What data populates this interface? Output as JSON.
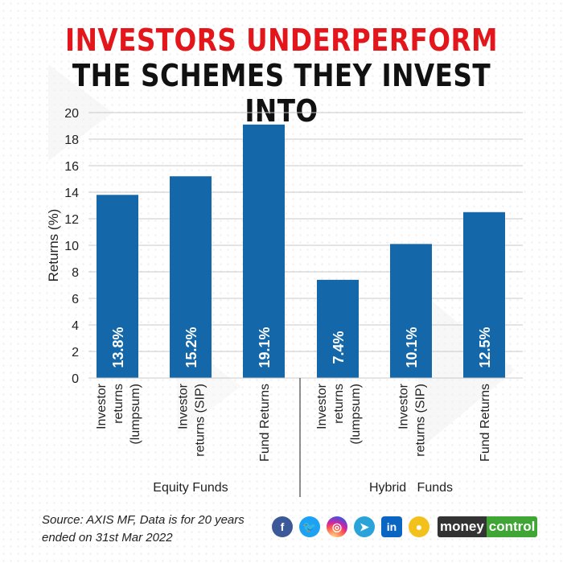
{
  "title": {
    "line1": "INVESTORS UNDERPERFORM",
    "line2": "THE SCHEMES THEY INVEST INTO",
    "line1_color": "#e3171b",
    "line2_color": "#111111"
  },
  "chart_data": {
    "type": "bar",
    "ylabel": "Returns (%)",
    "ylim": [
      0,
      20
    ],
    "yticks": [
      0,
      2,
      4,
      6,
      8,
      10,
      12,
      14,
      16,
      18,
      20
    ],
    "grid": true,
    "bar_color": "#1468aa",
    "categories": [
      "Investor returns (lumpsum)",
      "Investor returns (SIP)",
      "Fund Returns",
      "Investor returns (lumpsum)",
      "Investor returns (SIP)",
      "Fund Returns"
    ],
    "category_lines": [
      [
        "Investor",
        "returns",
        "(lumpsum)"
      ],
      [
        "Investor",
        "returns (SIP)"
      ],
      [
        "Fund Returns"
      ],
      [
        "Investor",
        "returns",
        "(lumpsum)"
      ],
      [
        "Investor",
        "returns (SIP)"
      ],
      [
        "Fund Returns"
      ]
    ],
    "values": [
      13.8,
      15.2,
      19.1,
      7.4,
      10.1,
      12.5
    ],
    "data_labels": [
      "13.8%",
      "15.2%",
      "19.1%",
      "7.4%",
      "10.1%",
      "12.5%"
    ],
    "groups": [
      {
        "name": "Equity Funds",
        "start": 0,
        "end": 2
      },
      {
        "name": "Hybrid   Funds",
        "start": 3,
        "end": 5
      }
    ]
  },
  "footer": {
    "source": "Source: AXIS MF, Data is for 20 years ended on 31st Mar 2022",
    "social_icons": [
      {
        "name": "facebook-icon",
        "glyph": "f",
        "color": "#3b5998"
      },
      {
        "name": "twitter-icon",
        "glyph": "🐦",
        "color": "#1da1f2"
      },
      {
        "name": "instagram-icon",
        "glyph": "◎",
        "color": "#d6249f"
      },
      {
        "name": "telegram-icon",
        "glyph": "➤",
        "color": "#2aa3d9"
      },
      {
        "name": "linkedin-icon",
        "glyph": "in",
        "color": "#0a66c2"
      },
      {
        "name": "koo-icon",
        "glyph": "●",
        "color": "#f3c11b"
      }
    ],
    "brand_part1": "money",
    "brand_part2": "control",
    "brand_color1": "#333333",
    "brand_color2": "#3fa535"
  }
}
